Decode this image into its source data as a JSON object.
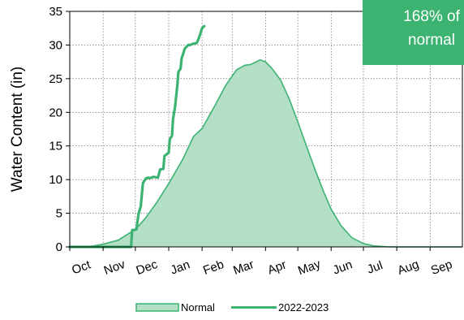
{
  "chart_data": {
    "type": "area",
    "title": "",
    "xlabel": "",
    "ylabel": "Water Content (in)",
    "ylim": [
      0,
      35
    ],
    "yticks": [
      0,
      5,
      10,
      15,
      20,
      25,
      30,
      35
    ],
    "xlim": [
      0,
      365
    ],
    "month_labels": [
      "Oct",
      "Nov",
      "Dec",
      "Jan",
      "Feb",
      "Mar",
      "Apr",
      "May",
      "Jun",
      "Jul",
      "Aug",
      "Sep"
    ],
    "month_starts": [
      0,
      31,
      61,
      92,
      123,
      151,
      182,
      212,
      243,
      273,
      304,
      335
    ],
    "grid": true,
    "legend_position": "bottom",
    "annotation": {
      "line1": "168% of",
      "line2": "normal"
    },
    "series": [
      {
        "name": "Normal",
        "kind": "area",
        "color": "#3cb371",
        "fill": "#b3dfc6",
        "x": [
          0,
          20,
          31,
          45,
          55,
          61,
          70,
          80,
          92,
          105,
          115,
          123,
          135,
          145,
          155,
          163,
          168,
          172,
          177,
          182,
          188,
          196,
          204,
          212,
          220,
          228,
          236,
          243,
          252,
          262,
          273,
          283,
          295,
          304,
          335,
          365
        ],
        "y": [
          0,
          0.1,
          0.4,
          1.0,
          2.0,
          2.6,
          4.2,
          6.4,
          9.4,
          13.0,
          16.4,
          17.6,
          21.0,
          24.0,
          26.3,
          27.0,
          27.1,
          27.4,
          27.8,
          27.5,
          26.5,
          24.8,
          22.0,
          18.6,
          15.0,
          11.5,
          8.2,
          5.6,
          3.2,
          1.4,
          0.5,
          0.15,
          0.03,
          0,
          0,
          0
        ]
      },
      {
        "name": "2022-2023",
        "kind": "line",
        "color": "#3cb371",
        "x": [
          0,
          30,
          50,
          57,
          58,
          62,
          64,
          66,
          68,
          71,
          73,
          74,
          78,
          82,
          84,
          87,
          88,
          92,
          93,
          95,
          96,
          98,
          100,
          101,
          103,
          104,
          106,
          107,
          109,
          110,
          112,
          113,
          115,
          118,
          120,
          122,
          123,
          125
        ],
        "y": [
          0,
          0,
          0,
          0,
          2.5,
          2.6,
          5.0,
          6.0,
          9.5,
          10.2,
          10.3,
          10.2,
          10.4,
          10.3,
          11.5,
          11.6,
          13.5,
          14.0,
          16.0,
          16.5,
          19.0,
          21.0,
          24.0,
          26.0,
          26.5,
          28.0,
          29.0,
          29.5,
          29.8,
          30.0,
          30.0,
          30.1,
          30.2,
          30.3,
          31.0,
          32.0,
          32.5,
          32.8
        ]
      }
    ]
  }
}
